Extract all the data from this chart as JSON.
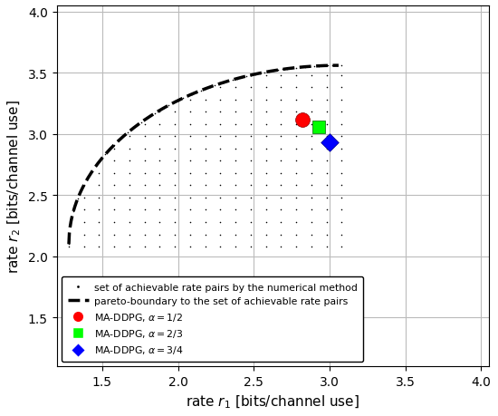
{
  "title": "",
  "xlabel": "rate $r_1$ [bits/channel use]",
  "ylabel": "rate $r_2$ [bits/channel use]",
  "xlim": [
    1.2,
    4.05
  ],
  "ylim": [
    1.1,
    4.05
  ],
  "xticks": [
    1.5,
    2.0,
    2.5,
    3.0,
    3.5,
    4.0
  ],
  "yticks": [
    1.5,
    2.0,
    2.5,
    3.0,
    3.5,
    4.0
  ],
  "ma_ddpg_alpha_half": [
    2.82,
    3.12
  ],
  "ma_ddpg_alpha_2_3": [
    2.93,
    3.06
  ],
  "ma_ddpg_alpha_3_4": [
    3.0,
    2.93
  ],
  "dot_color": "#000000",
  "background_color": "#ffffff",
  "grid_color": "#bbbbbb",
  "pareto_r1_start": 1.28,
  "pareto_r2_start": 3.56,
  "pareto_r1_end": 3.06,
  "pareto_r2_end": 2.1,
  "legend_dot_label": "set of achievable rate pairs by the numerical method",
  "legend_pareto_label": "pareto-boundary to the set of achievable rate pairs",
  "legend_red_label": "MA-DDPG, $\\alpha = 1/2$",
  "legend_green_label": "MA-DDPG, $\\alpha = 2/3$",
  "legend_blue_label": "MA-DDPG, $\\alpha = 3/4$"
}
